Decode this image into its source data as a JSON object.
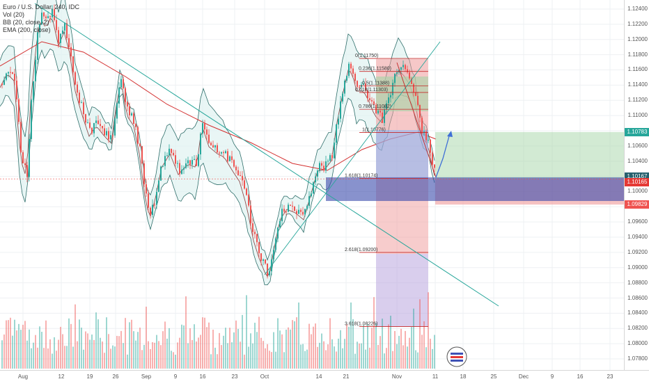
{
  "legend": {
    "symbol": "Euro / U.S. Dollar, 240, IDC",
    "vol": "Vol (20)",
    "bb": "BB (20, close, 2)",
    "ema": "EMA (200, close)"
  },
  "price_axis": {
    "labels": [
      "1.12400",
      "1.12200",
      "1.12000",
      "1.11800",
      "1.11600",
      "1.11400",
      "1.11200",
      "1.11000",
      "1.10800",
      "1.10600",
      "1.10400",
      "1.10200",
      "1.10000",
      "1.09800",
      "1.09600",
      "1.09400",
      "1.09200",
      "1.09000",
      "1.08800",
      "1.08600",
      "1.08400",
      "1.08200",
      "1.08000",
      "1.07800"
    ],
    "tags": [
      {
        "text": "1.10783",
        "color": "#26a69a",
        "price": 1.10783
      },
      {
        "text": "1.10167",
        "color": "#26616e",
        "price": 1.10167
      },
      {
        "text": "1.10165",
        "color": "#e53935",
        "price": 1.10165
      },
      {
        "text": "1.09829",
        "color": "#ef5350",
        "price": 1.09829
      }
    ]
  },
  "time_axis": {
    "labels": [
      "Aug",
      "12",
      "19",
      "26",
      "Sep",
      "9",
      "16",
      "23",
      "Oct",
      "14",
      "21",
      "Nov",
      "11",
      "18",
      "25",
      "Dec",
      "9",
      "16",
      "23"
    ]
  },
  "fib_levels": [
    {
      "label": "0(1.11750)",
      "price": 1.1175
    },
    {
      "label": "0.236(1.11580)",
      "price": 1.1158
    },
    {
      "label": "0.5(1.11388)",
      "price": 1.11388
    },
    {
      "label": "0.618(1.11303)",
      "price": 1.11303
    },
    {
      "label": "0.786(1.11082)",
      "price": 1.11082
    },
    {
      "label": "1(1.10776)",
      "price": 1.10776
    },
    {
      "label": "1.618(1.10174)",
      "price": 1.10174
    },
    {
      "label": "2.618(1.09200)",
      "price": 1.092
    },
    {
      "label": "3.618(1.08226)",
      "price": 1.08226
    }
  ],
  "colors": {
    "up": "#26a69a",
    "down": "#ef5350",
    "bb_fill": "#e0f2f1",
    "bb_line": "#2e6e6a",
    "ema": "#d32f2f",
    "trendline": "#26a69a",
    "profit": "#a5d6a7",
    "loss": "#ef9a9a",
    "fib_purple": "#b39ddb",
    "fib_blue": "#9fa8da"
  },
  "logo_icon": "tradingview-logo-icon"
}
